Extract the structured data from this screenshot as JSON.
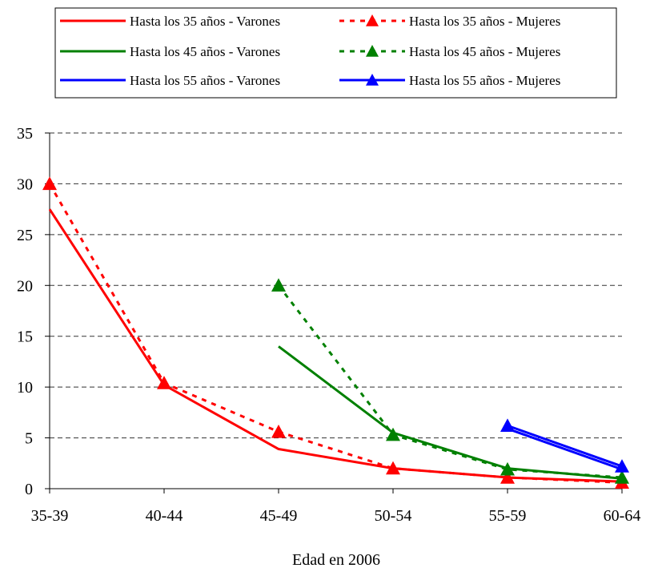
{
  "chart_data": {
    "type": "line",
    "title": "",
    "xlabel": "Edad en 2006",
    "ylabel": "",
    "categories": [
      "35-39",
      "40-44",
      "45-49",
      "50-54",
      "55-59",
      "60-64"
    ],
    "ylim": [
      0,
      35
    ],
    "yticks": [
      0,
      5,
      10,
      15,
      20,
      25,
      30,
      35
    ],
    "grid": "horizontal dashed",
    "legend_position": "top",
    "series": [
      {
        "name": "Hasta los 35 años - Varones",
        "color": "#ff0000",
        "line": "solid",
        "marker": "none",
        "values": [
          27.5,
          10.2,
          3.9,
          2.0,
          1.1,
          0.7
        ]
      },
      {
        "name": "Hasta los 35 años - Mujeres",
        "color": "#ff0000",
        "line": "dotted",
        "marker": "triangle",
        "values": [
          30.0,
          10.4,
          5.6,
          2.0,
          1.1,
          0.6
        ]
      },
      {
        "name": "Hasta los 45 años - Varones",
        "color": "#008000",
        "line": "solid",
        "marker": "none",
        "values": [
          null,
          null,
          14.0,
          5.5,
          2.0,
          1.0
        ]
      },
      {
        "name": "Hasta los 45 años - Mujeres",
        "color": "#008000",
        "line": "dotted",
        "marker": "triangle",
        "values": [
          null,
          null,
          20.0,
          5.3,
          1.9,
          1.1
        ]
      },
      {
        "name": "Hasta los 55 años - Varones",
        "color": "#0000ff",
        "line": "solid",
        "marker": "none",
        "values": [
          null,
          null,
          null,
          null,
          5.9,
          1.9
        ]
      },
      {
        "name": "Hasta los 55 años - Mujeres",
        "color": "#0000ff",
        "line": "solid",
        "marker": "triangle",
        "values": [
          null,
          null,
          null,
          null,
          6.2,
          2.2
        ]
      }
    ]
  }
}
